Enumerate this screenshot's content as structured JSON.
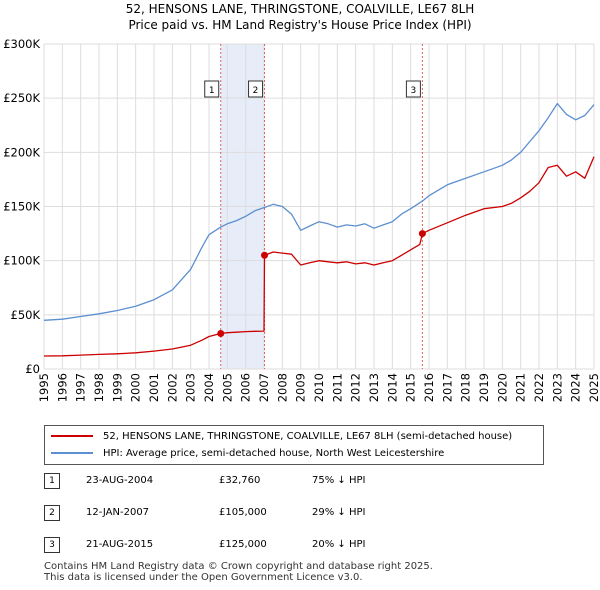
{
  "title_line1": "52, HENSONS LANE, THRINGSTONE, COALVILLE, LE67 8LH",
  "title_line2": "Price paid vs. HM Land Registry's House Price Index (HPI)",
  "colors": {
    "property": "#cc0000",
    "hpi": "#5b8fd0",
    "shade": "#e6ecf8",
    "marker_line": "#e06060",
    "grid": "#dddddd"
  },
  "legend": {
    "property_label": "52, HENSONS LANE, THRINGSTONE, COALVILLE, LE67 8LH (semi-detached house)",
    "hpi_label": "HPI: Average price, semi-detached house, North West Leicestershire"
  },
  "transactions": [
    {
      "num": "1",
      "date": "23-AUG-2004",
      "price": "£32,760",
      "hpi": "75% ↓ HPI"
    },
    {
      "num": "2",
      "date": "12-JAN-2007",
      "price": "£105,000",
      "hpi": "29% ↓ HPI"
    },
    {
      "num": "3",
      "date": "21-AUG-2015",
      "price": "£125,000",
      "hpi": "20% ↓ HPI"
    }
  ],
  "footer_line1": "Contains HM Land Registry data © Crown copyright and database right 2025.",
  "footer_line2": "This data is licensed under the Open Government Licence v3.0.",
  "chart_data": {
    "type": "line",
    "title": "Price paid vs. HM Land Registry's House Price Index (HPI)",
    "xlabel": "",
    "ylabel": "",
    "xlim": [
      1995,
      2025
    ],
    "ylim": [
      0,
      300000
    ],
    "x_ticks": [
      "1995",
      "1996",
      "1997",
      "1998",
      "1999",
      "2000",
      "2001",
      "2002",
      "2003",
      "2004",
      "2005",
      "2006",
      "2007",
      "2008",
      "2009",
      "2010",
      "2011",
      "2012",
      "2013",
      "2014",
      "2015",
      "2016",
      "2017",
      "2018",
      "2019",
      "2020",
      "2021",
      "2022",
      "2023",
      "2024",
      "2025"
    ],
    "y_ticks": [
      {
        "value": 0,
        "label": "£0"
      },
      {
        "value": 50000,
        "label": "£50K"
      },
      {
        "value": 100000,
        "label": "£100K"
      },
      {
        "value": 150000,
        "label": "£150K"
      },
      {
        "value": 200000,
        "label": "£200K"
      },
      {
        "value": 250000,
        "label": "£250K"
      },
      {
        "value": 300000,
        "label": "£300K"
      }
    ],
    "shaded_ranges": [
      [
        2004.64,
        2007.03
      ]
    ],
    "sale_markers": [
      {
        "label": "1",
        "x": 2004.64,
        "y": 32760
      },
      {
        "label": "2",
        "x": 2007.03,
        "y": 105000
      },
      {
        "label": "3",
        "x": 2015.64,
        "y": 125000
      }
    ],
    "series": [
      {
        "name": "52, HENSONS LANE, THRINGSTONE, COALVILLE, LE67 8LH (semi-detached house)",
        "x": [
          1995.0,
          1996.0,
          1997.0,
          1998.0,
          1999.0,
          2000.0,
          2001.0,
          2002.0,
          2003.0,
          2003.6,
          2004.0,
          2004.64,
          2005.0,
          2005.5,
          2006.0,
          2006.5,
          2007.0,
          2007.03,
          2007.5,
          2008.0,
          2008.5,
          2009.0,
          2009.5,
          2010.0,
          2010.5,
          2011.0,
          2011.5,
          2012.0,
          2012.5,
          2013.0,
          2013.5,
          2014.0,
          2014.5,
          2015.0,
          2015.5,
          2015.64,
          2016.0,
          2017.0,
          2018.0,
          2019.0,
          2020.0,
          2020.5,
          2021.0,
          2021.5,
          2022.0,
          2022.5,
          2023.0,
          2023.5,
          2024.0,
          2024.5,
          2025.0
        ],
        "values": [
          12000,
          12200,
          12800,
          13500,
          14000,
          15000,
          16500,
          18500,
          22000,
          26500,
          30000,
          32760,
          33500,
          34000,
          34500,
          34800,
          35000,
          105000,
          108000,
          107000,
          106000,
          96000,
          98000,
          100000,
          99000,
          98000,
          99000,
          97000,
          98000,
          96000,
          98000,
          100000,
          105000,
          110000,
          115000,
          125000,
          128000,
          135000,
          142000,
          148000,
          150000,
          153000,
          158000,
          164000,
          172000,
          186000,
          188000,
          178000,
          182000,
          176000,
          196000
        ]
      },
      {
        "name": "HPI: Average price, semi-detached house, North West Leicestershire",
        "x": [
          1995.0,
          1996.0,
          1997.0,
          1998.0,
          1999.0,
          2000.0,
          2001.0,
          2002.0,
          2003.0,
          2003.6,
          2004.0,
          2004.64,
          2005.0,
          2005.5,
          2006.0,
          2006.5,
          2007.0,
          2007.5,
          2008.0,
          2008.5,
          2009.0,
          2009.5,
          2010.0,
          2010.5,
          2011.0,
          2011.5,
          2012.0,
          2012.5,
          2013.0,
          2013.5,
          2014.0,
          2014.5,
          2015.0,
          2015.64,
          2016.0,
          2017.0,
          2018.0,
          2019.0,
          2020.0,
          2020.5,
          2021.0,
          2021.5,
          2022.0,
          2022.5,
          2023.0,
          2023.5,
          2024.0,
          2024.5,
          2025.0
        ],
        "values": [
          45000,
          46000,
          48500,
          51000,
          54000,
          58000,
          64000,
          73000,
          92000,
          112000,
          124000,
          131000,
          134000,
          137000,
          141000,
          146000,
          149000,
          152000,
          150000,
          143000,
          128000,
          132000,
          136000,
          134000,
          131000,
          133000,
          132000,
          134000,
          130000,
          133000,
          136000,
          143000,
          148000,
          155000,
          160000,
          170000,
          176000,
          182000,
          188000,
          193000,
          200000,
          210000,
          220000,
          232000,
          245000,
          235000,
          230000,
          234000,
          244000
        ]
      }
    ]
  }
}
